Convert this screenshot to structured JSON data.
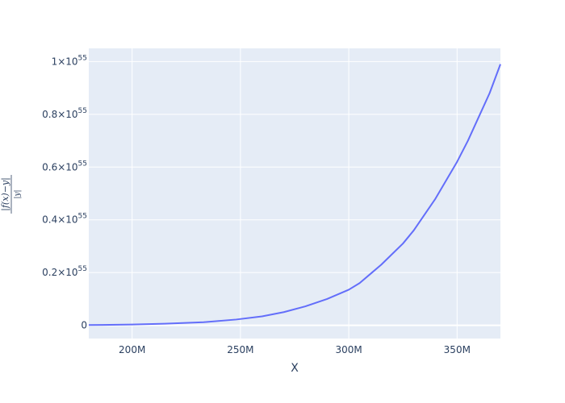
{
  "chart_data": {
    "type": "line",
    "title": "",
    "xlabel": "X",
    "ylabel": "|f(x)−y| / |y|",
    "xlim": [
      180000000,
      370000000
    ],
    "ylim": [
      -5e+53,
      1.05e+55
    ],
    "grid": true,
    "legend": "none",
    "colors": {
      "line": "#636efa",
      "plot_bg": "#e5ecf6",
      "grid": "#ffffff",
      "text": "#2a3f5f"
    },
    "x_ticks": [
      {
        "value": 200000000,
        "label": "200M"
      },
      {
        "value": 250000000,
        "label": "250M"
      },
      {
        "value": 300000000,
        "label": "300M"
      },
      {
        "value": 350000000,
        "label": "350M"
      }
    ],
    "y_ticks": [
      {
        "value": 0,
        "label": "0",
        "exp": ""
      },
      {
        "value": 2e+54,
        "label": "0.2×10",
        "exp": "55"
      },
      {
        "value": 4e+54,
        "label": "0.4×10",
        "exp": "55"
      },
      {
        "value": 6e+54,
        "label": "0.6×10",
        "exp": "55"
      },
      {
        "value": 8e+54,
        "label": "0.8×10",
        "exp": "55"
      },
      {
        "value": 1e+55,
        "label": "1×10",
        "exp": "55"
      }
    ],
    "series": [
      {
        "x": [
          180000000,
          200000000,
          215000000,
          233000000,
          248000000,
          260000000,
          270000000,
          280000000,
          290000000,
          300000000,
          305000000,
          310000000,
          315000000,
          320000000,
          325000000,
          330000000,
          335000000,
          340000000,
          345000000,
          350000000,
          355000000,
          360000000,
          365000000,
          370000000
        ],
        "y": [
          1e+52,
          3e+52,
          6e+52,
          1.2e+53,
          2.2e+53,
          3.4e+53,
          5e+53,
          7.2e+53,
          1e+54,
          1.35e+54,
          1.6e+54,
          1.95e+54,
          2.3e+54,
          2.7e+54,
          3.1e+54,
          3.6e+54,
          4.2e+54,
          4.8e+54,
          5.5e+54,
          6.2e+54,
          7e+54,
          7.9e+54,
          8.8e+54,
          9.9e+54
        ]
      }
    ]
  }
}
